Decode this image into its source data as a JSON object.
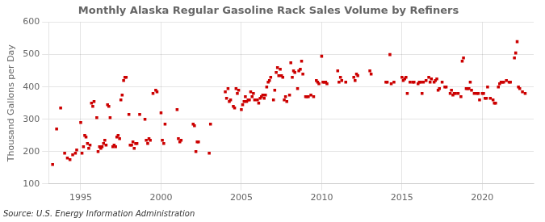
{
  "chart_data": {
    "type": "scatter",
    "title": "Monthly Alaska Regular Gasoline Rack Sales Volume by Refiners",
    "ylabel": "Thousand Gallons per Day",
    "annotations": [
      "Source: U.S. Energy Information Administration"
    ],
    "xlim": [
      1993.0,
      2023.2
    ],
    "xticks": [
      1995,
      2000,
      2005,
      2010,
      2015,
      2020
    ],
    "ylim": [
      100,
      600
    ],
    "yticks": [
      100,
      200,
      300,
      400,
      500,
      600
    ],
    "grid": true,
    "color": "#CC0000",
    "marker": "square",
    "x": [
      1993.25,
      1993.5,
      1993.75,
      1994.0,
      1994.17,
      1994.33,
      1994.5,
      1994.67,
      1994.75,
      1995.0,
      1995.08,
      1995.17,
      1995.25,
      1995.33,
      1995.42,
      1995.5,
      1995.58,
      1995.67,
      1995.75,
      1995.83,
      1996.0,
      1996.08,
      1996.17,
      1996.25,
      1996.33,
      1996.42,
      1996.5,
      1996.58,
      1996.67,
      1996.75,
      1996.83,
      1997.0,
      1997.08,
      1997.17,
      1997.25,
      1997.33,
      1997.42,
      1997.5,
      1997.58,
      1997.67,
      1997.75,
      1997.83,
      1998.0,
      1998.08,
      1998.17,
      1998.25,
      1998.33,
      1998.42,
      1998.5,
      1998.67,
      1999.0,
      1999.08,
      1999.17,
      1999.25,
      1999.33,
      1999.5,
      1999.67,
      1999.75,
      2000.0,
      2000.08,
      2000.17,
      2000.25,
      2001.0,
      2001.08,
      2001.17,
      2001.25,
      2002.0,
      2002.08,
      2002.17,
      2002.25,
      2002.33,
      2003.0,
      2003.08,
      2004.0,
      2004.08,
      2004.17,
      2004.25,
      2004.33,
      2004.5,
      2004.58,
      2004.67,
      2004.75,
      2004.83,
      2005.0,
      2005.08,
      2005.17,
      2005.25,
      2005.33,
      2005.42,
      2005.5,
      2005.58,
      2005.67,
      2005.75,
      2005.83,
      2006.0,
      2006.08,
      2006.17,
      2006.25,
      2006.33,
      2006.42,
      2006.5,
      2006.58,
      2006.67,
      2006.75,
      2006.83,
      2007.0,
      2007.08,
      2007.17,
      2007.25,
      2007.33,
      2007.42,
      2007.5,
      2007.58,
      2007.67,
      2007.75,
      2007.83,
      2008.0,
      2008.08,
      2008.17,
      2008.25,
      2008.33,
      2008.5,
      2008.58,
      2008.67,
      2008.75,
      2008.83,
      2009.0,
      2009.08,
      2009.17,
      2009.33,
      2009.5,
      2009.67,
      2009.75,
      2009.83,
      2010.0,
      2010.08,
      2010.17,
      2010.25,
      2010.33,
      2011.0,
      2011.08,
      2011.17,
      2011.25,
      2011.5,
      2012.0,
      2012.08,
      2012.17,
      2012.25,
      2013.0,
      2013.08,
      2014.0,
      2014.08,
      2014.25,
      2014.33,
      2014.5,
      2015.0,
      2015.08,
      2015.17,
      2015.25,
      2015.33,
      2015.5,
      2015.67,
      2015.75,
      2016.0,
      2016.08,
      2016.17,
      2016.25,
      2016.33,
      2016.5,
      2016.67,
      2016.75,
      2016.83,
      2017.0,
      2017.08,
      2017.17,
      2017.25,
      2017.33,
      2017.5,
      2017.67,
      2017.75,
      2018.0,
      2018.08,
      2018.17,
      2018.25,
      2018.33,
      2018.5,
      2018.67,
      2018.75,
      2018.83,
      2019.0,
      2019.08,
      2019.17,
      2019.25,
      2019.33,
      2019.5,
      2019.67,
      2019.75,
      2019.83,
      2020.0,
      2020.08,
      2020.17,
      2020.25,
      2020.33,
      2020.5,
      2020.67,
      2020.75,
      2020.83,
      2021.0,
      2021.08,
      2021.17,
      2021.25,
      2021.33,
      2021.5,
      2021.67,
      2021.75,
      2022.0,
      2022.08,
      2022.17,
      2022.25,
      2022.33,
      2022.5,
      2022.67
    ],
    "values": [
      160,
      270,
      335,
      195,
      180,
      175,
      190,
      195,
      205,
      290,
      195,
      215,
      250,
      245,
      225,
      210,
      220,
      350,
      340,
      355,
      305,
      200,
      215,
      210,
      215,
      225,
      235,
      220,
      345,
      340,
      305,
      215,
      220,
      215,
      245,
      250,
      240,
      360,
      375,
      420,
      430,
      430,
      315,
      220,
      220,
      230,
      210,
      225,
      225,
      315,
      300,
      235,
      225,
      240,
      235,
      380,
      390,
      385,
      320,
      235,
      225,
      285,
      330,
      240,
      230,
      235,
      285,
      280,
      200,
      230,
      230,
      195,
      285,
      385,
      365,
      395,
      355,
      360,
      340,
      335,
      395,
      380,
      390,
      330,
      345,
      355,
      370,
      355,
      360,
      360,
      385,
      370,
      380,
      360,
      360,
      350,
      365,
      370,
      375,
      365,
      375,
      400,
      415,
      420,
      430,
      360,
      390,
      445,
      460,
      435,
      455,
      435,
      430,
      360,
      370,
      355,
      375,
      475,
      430,
      450,
      445,
      395,
      450,
      455,
      480,
      440,
      370,
      370,
      370,
      375,
      370,
      420,
      415,
      410,
      495,
      415,
      415,
      415,
      410,
      450,
      415,
      430,
      420,
      415,
      430,
      420,
      440,
      435,
      450,
      440,
      415,
      415,
      500,
      410,
      415,
      430,
      420,
      425,
      430,
      380,
      415,
      415,
      415,
      410,
      415,
      415,
      380,
      415,
      420,
      430,
      415,
      425,
      415,
      420,
      425,
      390,
      395,
      415,
      400,
      400,
      380,
      390,
      375,
      380,
      380,
      380,
      370,
      480,
      490,
      395,
      395,
      395,
      415,
      390,
      380,
      380,
      380,
      360,
      380,
      380,
      365,
      365,
      400,
      365,
      360,
      350,
      350,
      400,
      410,
      415,
      415,
      415,
      420,
      415,
      415,
      490,
      505,
      540,
      400,
      395,
      385,
      380
    ]
  }
}
